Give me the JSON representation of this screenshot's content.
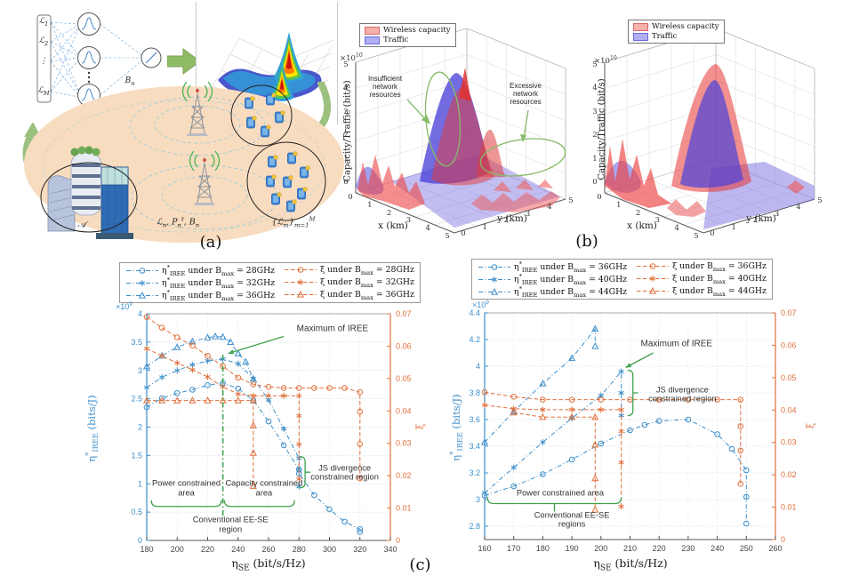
{
  "captions": {
    "a": "(a)",
    "b": "(b)",
    "c": "(c)"
  },
  "panel_a": {
    "nn": {
      "inputs": [
        "ℒ_{1}",
        "ℒ_{2}",
        "⋮",
        "ℒ_{M}"
      ],
      "bandwidth_label": "B_{n}",
      "output_fn_label": "S_{n}(ℒ_{n},ℒ_{m})"
    },
    "area_label": "𝒜",
    "base_station_label": "ℒ_{n}, P_{n}^{t}, B_{n}",
    "users_label": "{ℒ_{m}}_{m=1}^{M}"
  },
  "panel_b": {
    "plots": [
      {
        "legend": [
          {
            "label": "Wireless capacity",
            "fill": "#f6b1ac",
            "edge": "#d96a64"
          },
          {
            "label": "Traffic",
            "fill": "#b0aef2",
            "edge": "#6d6ade"
          }
        ],
        "y_exp": "×10^{10}",
        "ylabel": "Capacity/Traffic (bit/s)",
        "xlabel": "x (km)",
        "ylabel2": "y (km)",
        "zticks": [
          0,
          1,
          2,
          3,
          4,
          5
        ],
        "xticks": [
          0,
          1,
          2,
          3,
          4,
          5
        ],
        "yticks": [
          0,
          1,
          2,
          3,
          4,
          5
        ],
        "annotations": [
          "Insufficient network resources",
          "Excessive network resources"
        ]
      },
      {
        "legend": [
          {
            "label": "Wireless capacity",
            "fill": "#f6b1ac",
            "edge": "#d96a64"
          },
          {
            "label": "Traffic",
            "fill": "#b0aef2",
            "edge": "#6d6ade"
          }
        ],
        "y_exp": "×10^{10}",
        "ylabel": "Capacity/Traffic (bit/s)",
        "xlabel": "x (km)",
        "ylabel2": "y (km)",
        "zticks": [
          0,
          1,
          2,
          3,
          4,
          5
        ],
        "xticks": [
          0,
          1,
          2,
          3,
          4,
          5
        ],
        "yticks": [
          0,
          1,
          2,
          3,
          4,
          5
        ],
        "annotations": []
      }
    ]
  },
  "chart_data": [
    {
      "type": "line",
      "xlabel": "η_{SE} (bit/s/Hz)",
      "ylabel_left": "η^{*}_{IREE} (bits/J)",
      "ylabel_right": "ξ",
      "y_left_exp": "×10^{9}",
      "xlim": [
        180,
        340
      ],
      "xticks": [
        180,
        200,
        220,
        240,
        260,
        280,
        300,
        320,
        340
      ],
      "ylim_left": [
        0,
        4
      ],
      "yticks_left": [
        "0",
        "0.5",
        "1",
        "1.5",
        "2",
        "2.5",
        "3",
        "3.5",
        "4"
      ],
      "ylim_right": [
        0,
        0.07
      ],
      "yticks_right": [
        "0",
        "0.01",
        "0.02",
        "0.03",
        "0.04",
        "0.05",
        "0.06",
        "0.07"
      ],
      "grid": true,
      "legend_position": "top-outside",
      "colors": {
        "left_axis": "#3d8ec9",
        "right_axis": "#e0703c",
        "annotation": "#3fa24e"
      },
      "series": [
        {
          "name": "η^{*}_{IREE} under B_{max} = 28GHz",
          "axis": "left",
          "color": "#3d8ec9",
          "marker": "circle",
          "dash": "dashdot",
          "points": [
            [
              180,
              2.35
            ],
            [
              190,
              2.51
            ],
            [
              200,
              2.6
            ],
            [
              210,
              2.66
            ],
            [
              220,
              2.74
            ],
            [
              230,
              2.78
            ],
            [
              240,
              2.68
            ],
            [
              250,
              2.47
            ],
            [
              260,
              2.1
            ],
            [
              270,
              1.68
            ],
            [
              280,
              1.25
            ],
            [
              280,
              1.18
            ],
            [
              290,
              0.8
            ],
            [
              300,
              0.55
            ],
            [
              310,
              0.33
            ],
            [
              320,
              0.2
            ],
            [
              320,
              0.15
            ]
          ]
        },
        {
          "name": "η^{*}_{IREE} under B_{max} = 32GHz",
          "axis": "left",
          "color": "#3d8ec9",
          "marker": "asterisk",
          "dash": "dashdot",
          "points": [
            [
              180,
              2.7
            ],
            [
              190,
              2.88
            ],
            [
              200,
              3.0
            ],
            [
              210,
              3.1
            ],
            [
              220,
              3.17
            ],
            [
              230,
              3.2
            ],
            [
              240,
              3.12
            ],
            [
              250,
              2.86
            ],
            [
              260,
              2.48
            ],
            [
              270,
              1.97
            ],
            [
              280,
              1.45
            ],
            [
              280,
              1.25
            ],
            [
              280,
              0.95
            ]
          ]
        },
        {
          "name": "η^{*}_{IREE} under B_{max} = 36GHz",
          "axis": "left",
          "color": "#3d8ec9",
          "marker": "triangle",
          "dash": "dashdot",
          "points": [
            [
              180,
              3.07
            ],
            [
              190,
              3.26
            ],
            [
              200,
              3.41
            ],
            [
              210,
              3.51
            ],
            [
              220,
              3.58
            ],
            [
              225,
              3.6
            ],
            [
              230,
              3.59
            ],
            [
              235,
              3.5
            ],
            [
              240,
              3.3
            ],
            [
              245,
              3.15
            ],
            [
              250,
              2.85
            ]
          ]
        },
        {
          "name": "ξ under B_{max} = 28GHz",
          "axis": "right",
          "color": "#e0703c",
          "marker": "circle",
          "dash": "dashed",
          "points": [
            [
              180,
              0.069
            ],
            [
              190,
              0.0657
            ],
            [
              200,
              0.0627
            ],
            [
              210,
              0.0602
            ],
            [
              220,
              0.057
            ],
            [
              230,
              0.0538
            ],
            [
              240,
              0.0503
            ],
            [
              250,
              0.0482
            ],
            [
              260,
              0.0474
            ],
            [
              270,
              0.0471
            ],
            [
              280,
              0.0471
            ],
            [
              290,
              0.0471
            ],
            [
              300,
              0.0471
            ],
            [
              310,
              0.0471
            ],
            [
              320,
              0.0458
            ],
            [
              320,
              0.0398
            ],
            [
              320,
              0.0298
            ],
            [
              320,
              0.0192
            ]
          ]
        },
        {
          "name": "ξ under B_{max} = 32GHz",
          "axis": "right",
          "color": "#e0703c",
          "marker": "asterisk",
          "dash": "dashed",
          "points": [
            [
              180,
              0.0592
            ],
            [
              190,
              0.057
            ],
            [
              200,
              0.0548
            ],
            [
              210,
              0.0527
            ],
            [
              220,
              0.0505
            ],
            [
              230,
              0.0474
            ],
            [
              240,
              0.0452
            ],
            [
              250,
              0.0447
            ],
            [
              260,
              0.0447
            ],
            [
              270,
              0.0447
            ],
            [
              280,
              0.0447
            ],
            [
              280,
              0.0385
            ],
            [
              280,
              0.0297
            ],
            [
              280,
              0.019
            ]
          ]
        },
        {
          "name": "ξ under B_{max} = 36GHz",
          "axis": "right",
          "color": "#e0703c",
          "marker": "triangle",
          "dash": "dashed",
          "points": [
            [
              180,
              0.0432
            ],
            [
              190,
              0.0432
            ],
            [
              200,
              0.0432
            ],
            [
              210,
              0.0432
            ],
            [
              220,
              0.0432
            ],
            [
              230,
              0.0432
            ],
            [
              240,
              0.0432
            ],
            [
              250,
              0.0432
            ],
            [
              250,
              0.0355
            ],
            [
              250,
              0.027
            ],
            [
              250,
              0.0168
            ]
          ]
        }
      ],
      "annotations": [
        {
          "kind": "vline",
          "x": 230,
          "y1": 0.44,
          "y2": 3.28
        },
        {
          "kind": "arrowtext",
          "text": "Maximum of IREE",
          "tx": 302,
          "ty": 3.74,
          "w": 112,
          "fs": 10,
          "x1": 270,
          "y1": 3.6,
          "x2": 233.5,
          "y2": 3.3
        },
        {
          "kind": "hbracket",
          "x1": 183,
          "x2": 229,
          "y": 0.6
        },
        {
          "kind": "hbracket",
          "x1": 231,
          "x2": 277,
          "y": 0.6
        },
        {
          "kind": "text",
          "text": "Power constrained area",
          "tx": 206,
          "ty": 0.92,
          "w": 88
        },
        {
          "kind": "text",
          "text": "Capacity constrained area",
          "tx": 257,
          "ty": 0.92,
          "w": 92
        },
        {
          "kind": "text",
          "text": "Conventional EE-SE region",
          "tx": 235,
          "ty": 0.28,
          "w": 100
        },
        {
          "kind": "vbracket",
          "x": 284,
          "ybot": 0.93,
          "ytop": 1.48
        },
        {
          "kind": "text",
          "text": "JS divergence constrained region",
          "tx": 310,
          "ty": 1.2,
          "w": 88
        }
      ]
    },
    {
      "type": "line",
      "xlabel": "η_{SE} (bit/s/Hz)",
      "ylabel_left": "η^{*}_{IREE} (bits/J)",
      "ylabel_right": "ξ",
      "y_left_exp": "×10^{9}",
      "xlim": [
        160,
        260
      ],
      "xticks": [
        160,
        170,
        180,
        190,
        200,
        210,
        220,
        230,
        240,
        250,
        260
      ],
      "ylim_left": [
        2.7,
        4.4
      ],
      "yticks_left": [
        "2.8",
        "3",
        "3.2",
        "3.4",
        "3.6",
        "3.8",
        "4",
        "4.2",
        "4.4"
      ],
      "ylim_right": [
        0,
        0.07
      ],
      "yticks_right": [
        "0",
        "0.01",
        "0.02",
        "0.03",
        "0.04",
        "0.05",
        "0.06",
        "0.07"
      ],
      "grid": true,
      "legend_position": "top-outside",
      "colors": {
        "left_axis": "#3d8ec9",
        "right_axis": "#e0703c",
        "annotation": "#3fa24e"
      },
      "series": [
        {
          "name": "η^{*}_{IREE} under B_{max} = 36GHz",
          "axis": "left",
          "color": "#3d8ec9",
          "marker": "circle",
          "dash": "dashdot",
          "points": [
            [
              160,
              3.03
            ],
            [
              170,
              3.1
            ],
            [
              180,
              3.19
            ],
            [
              190,
              3.3
            ],
            [
              200,
              3.42
            ],
            [
              210,
              3.52
            ],
            [
              215,
              3.56
            ],
            [
              220,
              3.59
            ],
            [
              230,
              3.6
            ],
            [
              240,
              3.49
            ],
            [
              245,
              3.38
            ],
            [
              250,
              3.22
            ],
            [
              250,
              3.02
            ],
            [
              250,
              2.82
            ]
          ]
        },
        {
          "name": "η^{*}_{IREE} under B_{max} = 40GHz",
          "axis": "left",
          "color": "#3d8ec9",
          "marker": "asterisk",
          "dash": "dashdot",
          "points": [
            [
              160,
              3.05
            ],
            [
              170,
              3.24
            ],
            [
              180,
              3.43
            ],
            [
              190,
              3.61
            ],
            [
              200,
              3.78
            ],
            [
              207,
              3.96
            ],
            [
              207,
              3.8
            ],
            [
              207,
              3.63
            ]
          ]
        },
        {
          "name": "η^{*}_{IREE} under B_{max} = 44GHz",
          "axis": "left",
          "color": "#3d8ec9",
          "marker": "triangle",
          "dash": "dashdot",
          "points": [
            [
              160,
              3.43
            ],
            [
              170,
              3.66
            ],
            [
              180,
              3.87
            ],
            [
              190,
              4.06
            ],
            [
              198,
              4.28
            ],
            [
              198,
              4.15
            ]
          ]
        },
        {
          "name": "ξ under B_{max} = 36GHz",
          "axis": "right",
          "color": "#e0703c",
          "marker": "circle",
          "dash": "dashed",
          "points": [
            [
              160,
              0.0455
            ],
            [
              170,
              0.0441
            ],
            [
              180,
              0.0432
            ],
            [
              190,
              0.0432
            ],
            [
              200,
              0.0432
            ],
            [
              210,
              0.0432
            ],
            [
              220,
              0.0432
            ],
            [
              230,
              0.0432
            ],
            [
              240,
              0.0432
            ],
            [
              248,
              0.0432
            ],
            [
              248,
              0.035
            ],
            [
              248,
              0.0275
            ],
            [
              248,
              0.0172
            ]
          ]
        },
        {
          "name": "ξ under B_{max} = 40GHz",
          "axis": "right",
          "color": "#e0703c",
          "marker": "asterisk",
          "dash": "dashed",
          "points": [
            [
              160,
              0.0415
            ],
            [
              170,
              0.0404
            ],
            [
              180,
              0.0401
            ],
            [
              190,
              0.0401
            ],
            [
              200,
              0.0401
            ],
            [
              207,
              0.0401
            ],
            [
              207,
              0.0334
            ],
            [
              207,
              0.0238
            ],
            [
              207,
              0.0102
            ]
          ]
        },
        {
          "name": "ξ under B_{max} = 44GHz",
          "axis": "right",
          "color": "#e0703c",
          "marker": "triangle",
          "dash": "dashed",
          "points": [
            [
              170,
              0.0392
            ],
            [
              180,
              0.0378
            ],
            [
              190,
              0.0378
            ],
            [
              198,
              0.0378
            ],
            [
              198,
              0.0293
            ],
            [
              198,
              0.0189
            ],
            [
              198,
              0.0092
            ]
          ]
        }
      ],
      "annotations": [
        {
          "kind": "arrowtext",
          "text": "Maximum of IREE",
          "tx": 226,
          "ty": 4.17,
          "w": 112,
          "fs": 10,
          "x1": 218,
          "y1": 4.1,
          "x2": 208.5,
          "y2": 3.99
        },
        {
          "kind": "vbracket",
          "x": 211,
          "ybot": 3.63,
          "ytop": 3.97
        },
        {
          "kind": "text",
          "text": "JS divergence constrained region",
          "tx": 228,
          "ty": 3.79,
          "w": 92
        },
        {
          "kind": "hbracket",
          "x1": 161,
          "x2": 207,
          "y": 2.97,
          "tick": 184
        },
        {
          "kind": "text",
          "text": "Power constrained area",
          "tx": 186,
          "ty": 3.05,
          "w": 150
        },
        {
          "kind": "text",
          "text": "Conventional EE-SE regions",
          "tx": 190,
          "ty": 2.85,
          "w": 110
        }
      ]
    }
  ]
}
